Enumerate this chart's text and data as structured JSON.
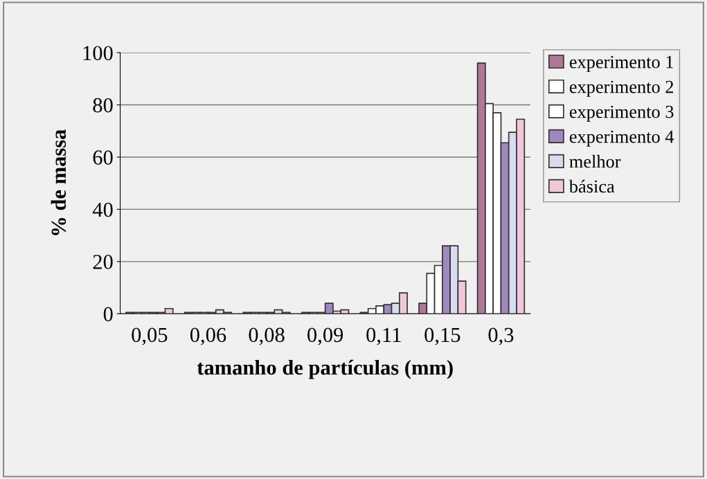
{
  "chart_data": {
    "type": "bar",
    "xlabel": "tamanho de partículas (mm)",
    "ylabel": "% de massa",
    "categories": [
      "0,05",
      "0,06",
      "0,08",
      "0,09",
      "0,11",
      "0,15",
      "0,3"
    ],
    "series": [
      {
        "name": "experimento 1",
        "color": "#b07898",
        "values": [
          0.5,
          0.5,
          0.5,
          0.5,
          0.5,
          4,
          96
        ]
      },
      {
        "name": "experimento 2",
        "color": "#ffffff",
        "values": [
          0.5,
          0.5,
          0.5,
          0.5,
          2,
          15.5,
          80.5
        ]
      },
      {
        "name": "experimento 3",
        "color": "#ffffff",
        "values": [
          0.5,
          0.5,
          0.5,
          0.5,
          3,
          18.5,
          77
        ]
      },
      {
        "name": "experimento 4",
        "color": "#9f88c0",
        "values": [
          0.5,
          0.5,
          0.5,
          4,
          3.5,
          26,
          65.5
        ]
      },
      {
        "name": "melhor",
        "color": "#d8dcf0",
        "values": [
          0.5,
          1.5,
          1.5,
          1,
          4,
          26,
          69.5
        ]
      },
      {
        "name": "básica",
        "color": "#f0c8d8",
        "values": [
          2,
          0.5,
          0.5,
          1.5,
          8,
          12.5,
          74.5
        ]
      }
    ],
    "ylim": [
      0,
      100
    ],
    "yticks": [
      0,
      20,
      40,
      60,
      80,
      100
    ],
    "grid": "y",
    "legend": "right"
  }
}
